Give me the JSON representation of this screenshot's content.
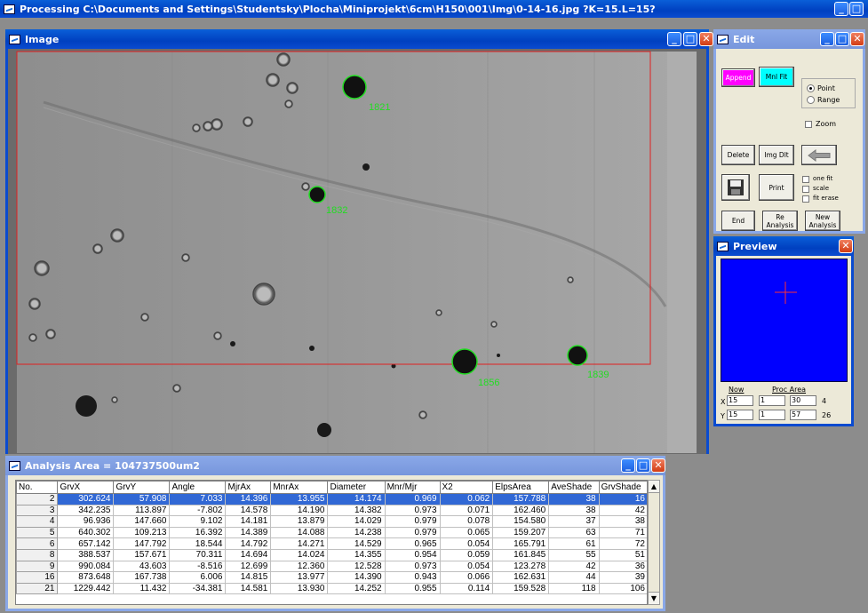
{
  "app_title": "Processing C:\\Documents and Settings\\Studentsky\\Plocha\\Miniprojekt\\6cm\\H150\\001\\Img\\0-14-16.jpg  ?K=15.L=15?",
  "image_window": {
    "title": "Image"
  },
  "edit_window": {
    "title": "Edit",
    "append_label": "Append",
    "mnlfit_label": "Mnl Fit",
    "point_label": "Point",
    "range_label": "Range",
    "zoom_label": "Zoom",
    "delete_label": "Delete",
    "imgdlt_label": "Img Dlt",
    "print_label": "Print",
    "onefit_label": "one fit",
    "scale_label": "scale",
    "fiterase_label": "fit erase",
    "end_label": "End",
    "reanalysis_label": "Re Analysis",
    "newanalysis_label": "New Analysis",
    "accent_append": "#ff00ff",
    "accent_mnlfit": "#00ffff"
  },
  "preview_window": {
    "title": "Preview",
    "now_label": "Now",
    "procarea_label": "Proc Area",
    "x_label": "X",
    "y_label": "Y",
    "x_now": "15",
    "x_from": "1",
    "x_to": "30",
    "x_count": "4",
    "y_now": "15",
    "y_from": "1",
    "y_to": "57",
    "y_count": "26"
  },
  "detections": [
    "1821",
    "1832",
    "1856",
    "1839"
  ],
  "analysis_window": {
    "title": "Analysis Area = 104737500um2",
    "columns": [
      "No.",
      "GrvX",
      "GrvY",
      "Angle",
      "MjrAx",
      "MnrAx",
      "Diameter",
      "Mnr/Mjr",
      "X2",
      "ElpsArea",
      "AveShade",
      "GrvShade"
    ],
    "rows": [
      [
        "2",
        "302.624",
        "57.908",
        "7.033",
        "14.396",
        "13.955",
        "14.174",
        "0.969",
        "0.062",
        "157.788",
        "38",
        "16"
      ],
      [
        "3",
        "342.235",
        "113.897",
        "-7.802",
        "14.578",
        "14.190",
        "14.382",
        "0.973",
        "0.071",
        "162.460",
        "38",
        "42"
      ],
      [
        "4",
        "96.936",
        "147.660",
        "9.102",
        "14.181",
        "13.879",
        "14.029",
        "0.979",
        "0.078",
        "154.580",
        "37",
        "38"
      ],
      [
        "5",
        "640.302",
        "109.213",
        "16.392",
        "14.389",
        "14.088",
        "14.238",
        "0.979",
        "0.065",
        "159.207",
        "63",
        "71"
      ],
      [
        "6",
        "657.142",
        "147.792",
        "18.544",
        "14.792",
        "14.271",
        "14.529",
        "0.965",
        "0.054",
        "165.791",
        "61",
        "72"
      ],
      [
        "8",
        "388.537",
        "157.671",
        "70.311",
        "14.694",
        "14.024",
        "14.355",
        "0.954",
        "0.059",
        "161.845",
        "55",
        "51"
      ],
      [
        "9",
        "990.084",
        "43.603",
        "-8.516",
        "12.699",
        "12.360",
        "12.528",
        "0.973",
        "0.054",
        "123.278",
        "42",
        "36"
      ],
      [
        "16",
        "873.648",
        "167.738",
        "6.006",
        "14.815",
        "13.977",
        "14.390",
        "0.943",
        "0.066",
        "162.631",
        "44",
        "39"
      ],
      [
        "21",
        "1229.442",
        "11.432",
        "-34.381",
        "14.581",
        "13.930",
        "14.252",
        "0.955",
        "0.114",
        "159.528",
        "118",
        "106"
      ]
    ]
  }
}
